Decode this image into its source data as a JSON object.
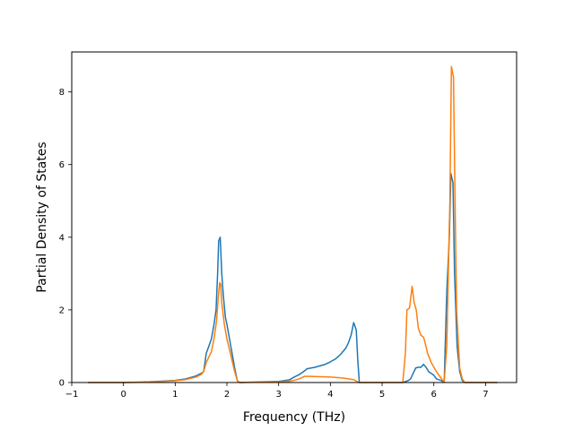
{
  "chart_data": {
    "type": "line",
    "title": "",
    "xlabel": "Frequency (THz)",
    "ylabel": "Partial Density of States",
    "xlim": [
      -1.0,
      7.6
    ],
    "ylim": [
      0,
      9.1
    ],
    "xticks": [
      -1,
      0,
      1,
      2,
      3,
      4,
      5,
      6,
      7
    ],
    "yticks": [
      0,
      2,
      4,
      6,
      8
    ],
    "grid": false,
    "legend": "none",
    "series": [
      {
        "color": "#1f77b4",
        "points": [
          [
            -0.68,
            0.0
          ],
          [
            0.0,
            0.0
          ],
          [
            0.5,
            0.02
          ],
          [
            1.0,
            0.06
          ],
          [
            1.2,
            0.1
          ],
          [
            1.4,
            0.18
          ],
          [
            1.5,
            0.25
          ],
          [
            1.55,
            0.3
          ],
          [
            1.6,
            0.8
          ],
          [
            1.65,
            1.0
          ],
          [
            1.7,
            1.2
          ],
          [
            1.75,
            1.6
          ],
          [
            1.79,
            2.0
          ],
          [
            1.82,
            3.0
          ],
          [
            1.84,
            3.9
          ],
          [
            1.87,
            4.0
          ],
          [
            1.9,
            3.0
          ],
          [
            1.93,
            2.4
          ],
          [
            1.97,
            1.8
          ],
          [
            2.0,
            1.6
          ],
          [
            2.05,
            1.2
          ],
          [
            2.1,
            0.8
          ],
          [
            2.15,
            0.4
          ],
          [
            2.2,
            0.05
          ],
          [
            2.25,
            0.0
          ],
          [
            3.0,
            0.03
          ],
          [
            3.2,
            0.07
          ],
          [
            3.3,
            0.15
          ],
          [
            3.4,
            0.22
          ],
          [
            3.5,
            0.32
          ],
          [
            3.55,
            0.38
          ],
          [
            3.7,
            0.42
          ],
          [
            3.9,
            0.5
          ],
          [
            4.0,
            0.57
          ],
          [
            4.1,
            0.65
          ],
          [
            4.2,
            0.78
          ],
          [
            4.3,
            0.95
          ],
          [
            4.35,
            1.1
          ],
          [
            4.4,
            1.3
          ],
          [
            4.45,
            1.65
          ],
          [
            4.5,
            1.45
          ],
          [
            4.53,
            0.6
          ],
          [
            4.56,
            0.0
          ],
          [
            5.4,
            0.0
          ],
          [
            5.5,
            0.05
          ],
          [
            5.55,
            0.1
          ],
          [
            5.6,
            0.25
          ],
          [
            5.65,
            0.4
          ],
          [
            5.7,
            0.42
          ],
          [
            5.75,
            0.42
          ],
          [
            5.8,
            0.5
          ],
          [
            5.85,
            0.42
          ],
          [
            5.9,
            0.3
          ],
          [
            5.95,
            0.25
          ],
          [
            6.0,
            0.2
          ],
          [
            6.05,
            0.1
          ],
          [
            6.15,
            0.05
          ],
          [
            6.2,
            0.0
          ],
          [
            6.25,
            2.5
          ],
          [
            6.3,
            4.0
          ],
          [
            6.33,
            5.75
          ],
          [
            6.37,
            5.5
          ],
          [
            6.4,
            3.0
          ],
          [
            6.45,
            1.0
          ],
          [
            6.5,
            0.3
          ],
          [
            6.55,
            0.05
          ],
          [
            6.6,
            0.0
          ],
          [
            7.22,
            0.0
          ]
        ]
      },
      {
        "color": "#ff7f0e",
        "points": [
          [
            -0.68,
            0.0
          ],
          [
            0.0,
            0.0
          ],
          [
            0.5,
            0.01
          ],
          [
            1.0,
            0.05
          ],
          [
            1.2,
            0.08
          ],
          [
            1.4,
            0.15
          ],
          [
            1.5,
            0.22
          ],
          [
            1.55,
            0.3
          ],
          [
            1.6,
            0.55
          ],
          [
            1.65,
            0.7
          ],
          [
            1.7,
            0.85
          ],
          [
            1.75,
            1.2
          ],
          [
            1.8,
            1.7
          ],
          [
            1.83,
            2.3
          ],
          [
            1.86,
            2.75
          ],
          [
            1.88,
            2.7
          ],
          [
            1.9,
            2.2
          ],
          [
            1.95,
            1.6
          ],
          [
            2.0,
            1.2
          ],
          [
            2.05,
            0.9
          ],
          [
            2.1,
            0.6
          ],
          [
            2.15,
            0.3
          ],
          [
            2.2,
            0.05
          ],
          [
            2.25,
            0.0
          ],
          [
            3.0,
            0.02
          ],
          [
            3.2,
            0.03
          ],
          [
            3.3,
            0.06
          ],
          [
            3.4,
            0.1
          ],
          [
            3.5,
            0.17
          ],
          [
            3.6,
            0.17
          ],
          [
            3.8,
            0.16
          ],
          [
            4.0,
            0.15
          ],
          [
            4.2,
            0.13
          ],
          [
            4.3,
            0.11
          ],
          [
            4.4,
            0.09
          ],
          [
            4.45,
            0.08
          ],
          [
            4.5,
            0.04
          ],
          [
            4.55,
            0.0
          ],
          [
            5.4,
            0.0
          ],
          [
            5.45,
            0.8
          ],
          [
            5.48,
            2.0
          ],
          [
            5.53,
            2.05
          ],
          [
            5.58,
            2.65
          ],
          [
            5.62,
            2.2
          ],
          [
            5.66,
            2.0
          ],
          [
            5.7,
            1.5
          ],
          [
            5.75,
            1.3
          ],
          [
            5.8,
            1.25
          ],
          [
            5.83,
            1.1
          ],
          [
            5.88,
            0.8
          ],
          [
            5.95,
            0.55
          ],
          [
            6.05,
            0.3
          ],
          [
            6.15,
            0.1
          ],
          [
            6.2,
            0.02
          ],
          [
            6.25,
            1.0
          ],
          [
            6.28,
            3.0
          ],
          [
            6.31,
            5.0
          ],
          [
            6.34,
            8.7
          ],
          [
            6.38,
            8.4
          ],
          [
            6.41,
            5.0
          ],
          [
            6.44,
            2.0
          ],
          [
            6.5,
            0.4
          ],
          [
            6.55,
            0.1
          ],
          [
            6.6,
            0.0
          ],
          [
            7.22,
            0.0
          ]
        ]
      }
    ]
  }
}
